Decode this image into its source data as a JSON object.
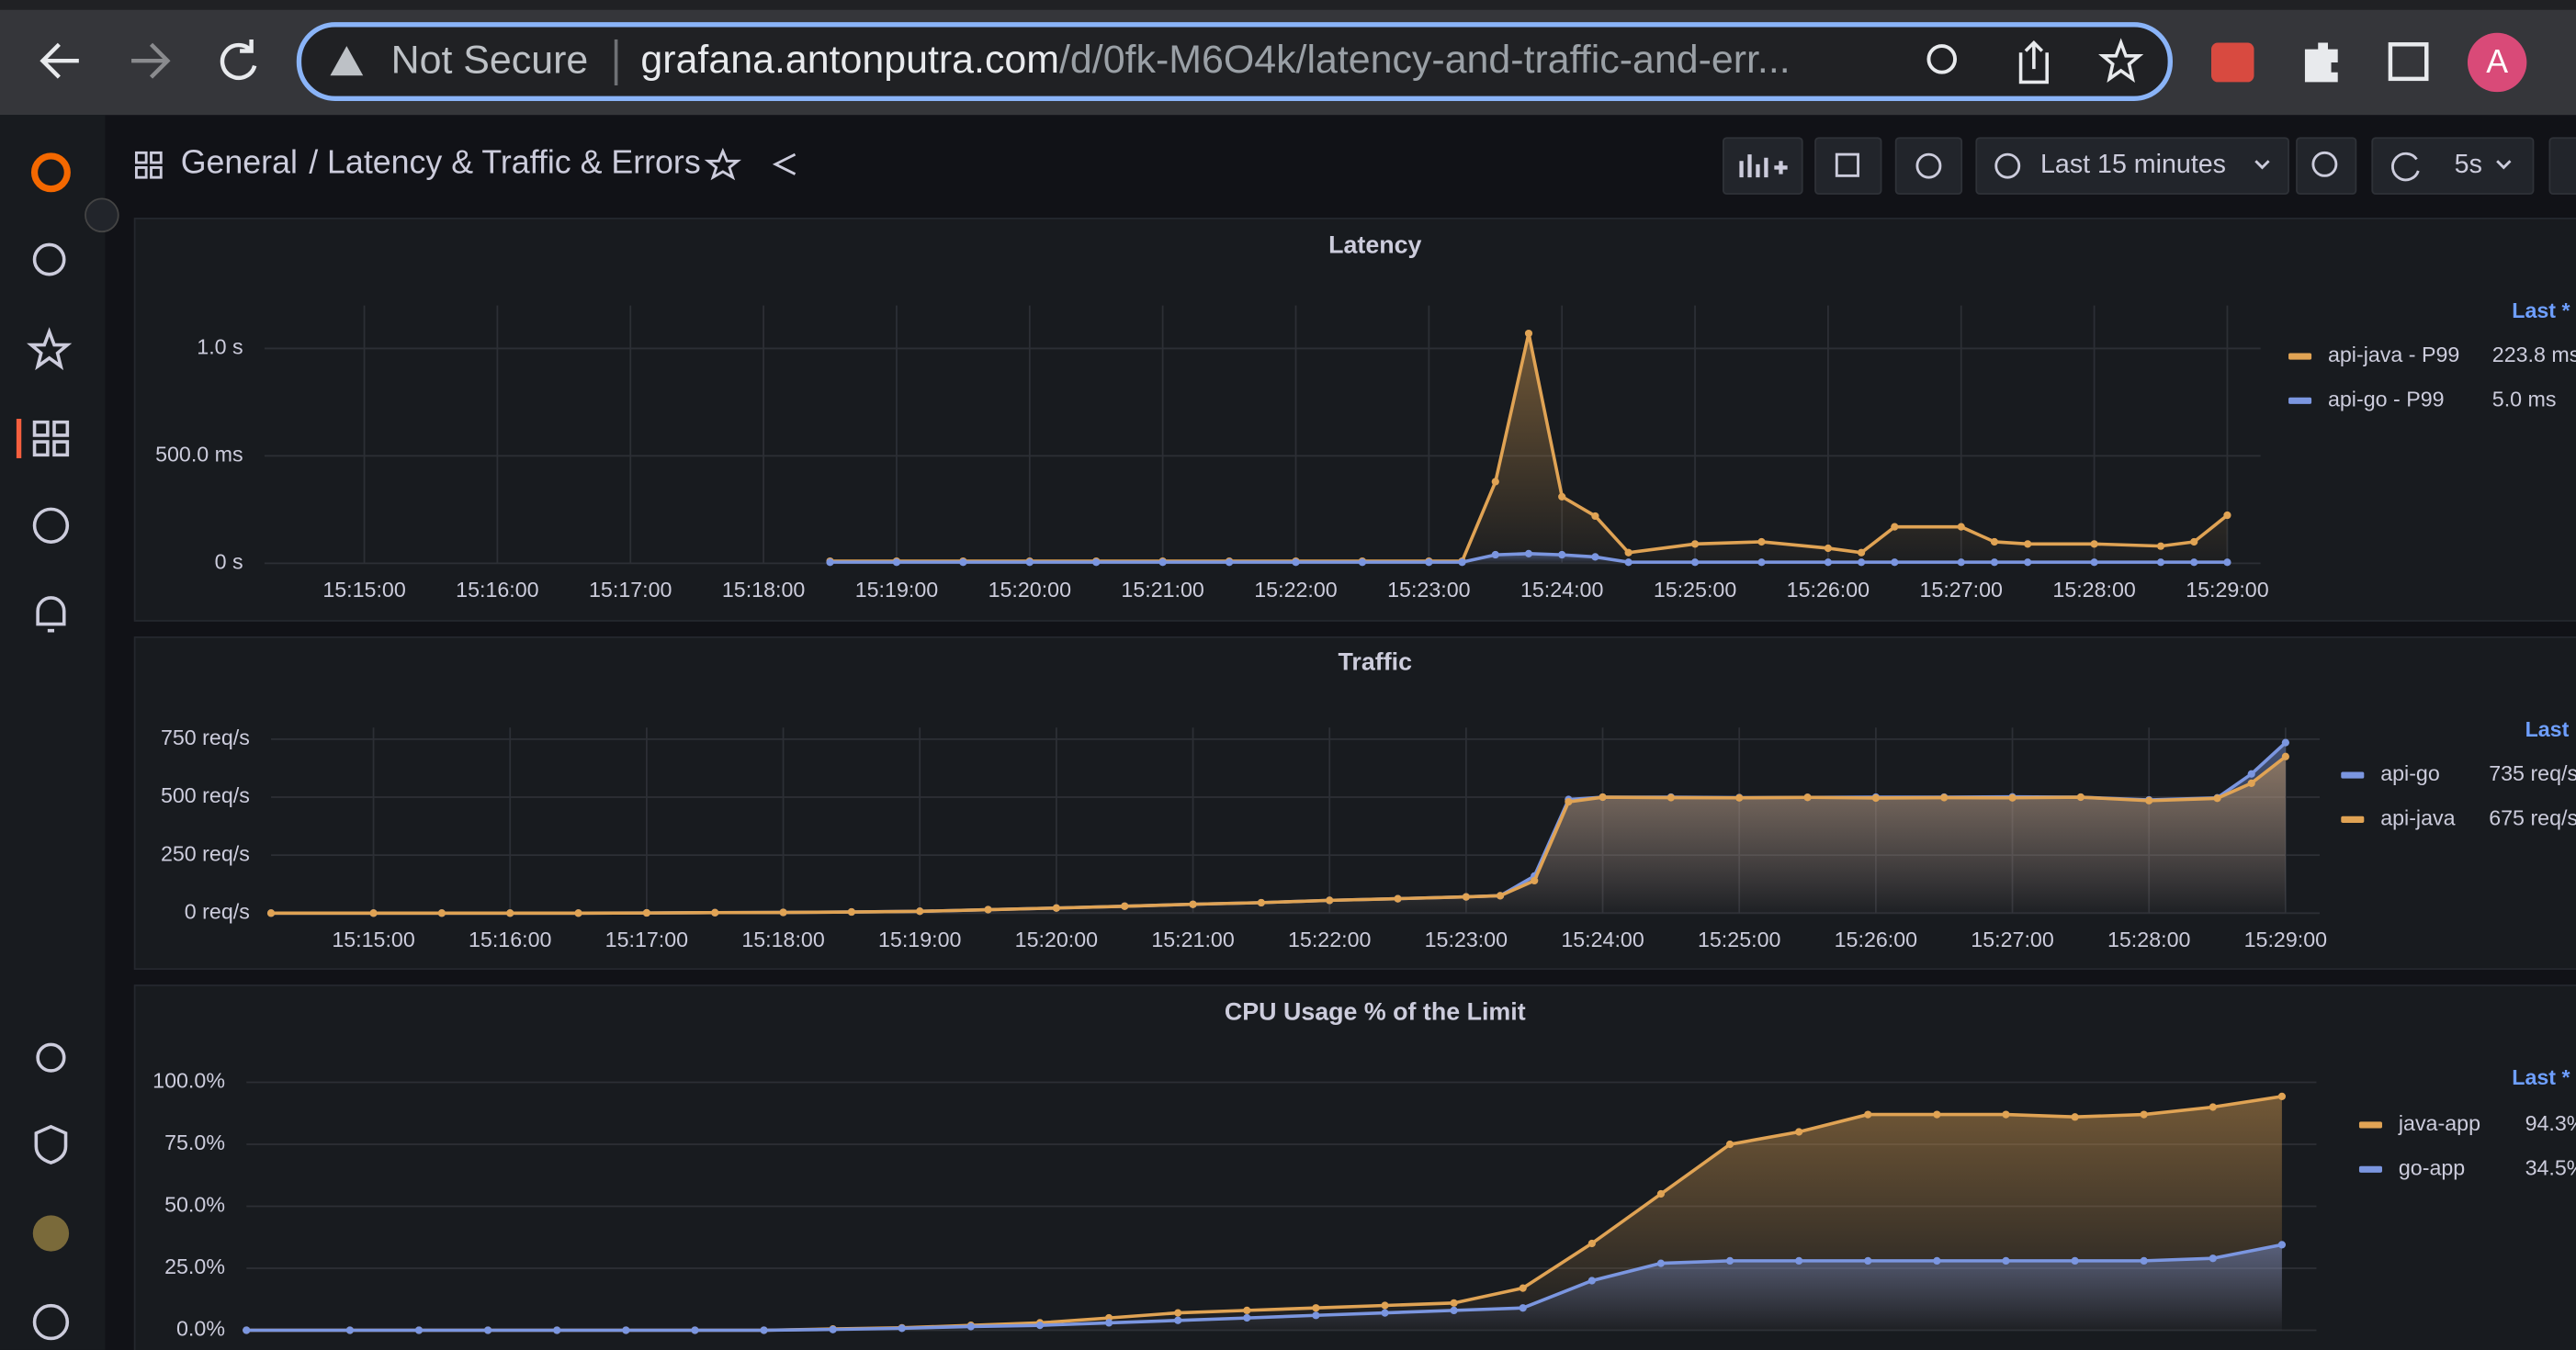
{
  "browser": {
    "not_secure": "Not Secure",
    "url_host": "grafana.antonputra.com",
    "url_path": "/d/0fk-M6O4k/latency-and-traffic-and-err...",
    "avatar": "A"
  },
  "breadcrumb": {
    "folder": "General",
    "title": "/ Latency & Traffic & Errors"
  },
  "toolbar": {
    "time_range": "Last 15 minutes",
    "refresh": "5s"
  },
  "chart_data": [
    {
      "type": "line",
      "title": "Latency",
      "legend_header": "Last *",
      "x": [
        "15:18:30",
        "15:19:00",
        "15:19:30",
        "15:20:00",
        "15:20:30",
        "15:21:00",
        "15:21:30",
        "15:22:00",
        "15:22:30",
        "15:23:00",
        "15:23:15",
        "15:23:30",
        "15:23:45",
        "15:24:00",
        "15:24:15",
        "15:24:30",
        "15:25:00",
        "15:25:30",
        "15:26:00",
        "15:26:15",
        "15:26:30",
        "15:27:00",
        "15:27:15",
        "15:27:30",
        "15:28:00",
        "15:28:30",
        "15:28:45",
        "15:29:00"
      ],
      "series": [
        {
          "name": "api-java - P99",
          "color": "#e0a354",
          "legend_value": "223.8 ms",
          "values": [
            0.01,
            0.01,
            0.01,
            0.01,
            0.01,
            0.01,
            0.01,
            0.01,
            0.01,
            0.01,
            0.01,
            0.38,
            1.07,
            0.31,
            0.22,
            0.05,
            0.09,
            0.1,
            0.07,
            0.05,
            0.17,
            0.17,
            0.1,
            0.09,
            0.09,
            0.08,
            0.1,
            0.2238
          ]
        },
        {
          "name": "api-go - P99",
          "color": "#7b96e0",
          "legend_value": "5.0 ms",
          "values": [
            0.005,
            0.005,
            0.005,
            0.005,
            0.005,
            0.005,
            0.005,
            0.005,
            0.005,
            0.005,
            0.005,
            0.04,
            0.045,
            0.04,
            0.03,
            0.005,
            0.005,
            0.005,
            0.005,
            0.005,
            0.005,
            0.005,
            0.005,
            0.005,
            0.005,
            0.005,
            0.005,
            0.005
          ]
        }
      ],
      "xlim": [
        "15:14:15",
        "15:29:15"
      ],
      "xticks": [
        "15:15:00",
        "15:16:00",
        "15:17:00",
        "15:18:00",
        "15:19:00",
        "15:20:00",
        "15:21:00",
        "15:22:00",
        "15:23:00",
        "15:24:00",
        "15:25:00",
        "15:26:00",
        "15:27:00",
        "15:28:00",
        "15:29:00"
      ],
      "ylim": [
        0,
        1.2
      ],
      "yticks": [
        {
          "value": 0,
          "label": "0 s"
        },
        {
          "value": 0.5,
          "label": "500.0 ms"
        },
        {
          "value": 1,
          "label": "1.0 s"
        }
      ],
      "grid": true
    },
    {
      "type": "line",
      "title": "Traffic",
      "legend_header": "Last",
      "x": [
        "15:14:15",
        "15:15:00",
        "15:15:30",
        "15:16:00",
        "15:16:30",
        "15:17:00",
        "15:17:30",
        "15:18:00",
        "15:18:30",
        "15:19:00",
        "15:19:30",
        "15:20:00",
        "15:20:30",
        "15:21:00",
        "15:21:30",
        "15:22:00",
        "15:22:30",
        "15:23:00",
        "15:23:15",
        "15:23:30",
        "15:23:45",
        "15:24:00",
        "15:24:30",
        "15:25:00",
        "15:25:30",
        "15:26:00",
        "15:26:30",
        "15:27:00",
        "15:27:30",
        "15:28:00",
        "15:28:30",
        "15:28:45",
        "15:29:00"
      ],
      "series": [
        {
          "name": "api-go",
          "color": "#7b96e0",
          "legend_value": "735 req/s",
          "values": [
            0,
            0,
            0,
            0,
            0,
            1,
            2,
            3,
            5,
            8,
            15,
            22,
            30,
            38,
            45,
            55,
            62,
            70,
            75,
            160,
            490,
            500,
            500,
            498,
            499,
            500,
            500,
            501,
            500,
            488,
            497,
            600,
            735
          ]
        },
        {
          "name": "api-java",
          "color": "#e0a354",
          "legend_value": "675 req/s",
          "values": [
            0,
            0,
            0,
            0,
            0,
            1,
            2,
            3,
            5,
            8,
            15,
            22,
            30,
            38,
            45,
            55,
            62,
            70,
            75,
            140,
            480,
            500,
            498,
            497,
            499,
            496,
            498,
            497,
            500,
            485,
            495,
            560,
            675
          ]
        }
      ],
      "xlim": [
        "15:14:15",
        "15:29:15"
      ],
      "xticks": [
        "15:15:00",
        "15:16:00",
        "15:17:00",
        "15:18:00",
        "15:19:00",
        "15:20:00",
        "15:21:00",
        "15:22:00",
        "15:23:00",
        "15:24:00",
        "15:25:00",
        "15:26:00",
        "15:27:00",
        "15:28:00",
        "15:29:00"
      ],
      "ylim": [
        0,
        800
      ],
      "yticks": [
        {
          "value": 0,
          "label": "0 req/s"
        },
        {
          "value": 250,
          "label": "250 req/s"
        },
        {
          "value": 500,
          "label": "500 req/s"
        },
        {
          "value": 750,
          "label": "750 req/s"
        }
      ],
      "grid": true
    },
    {
      "type": "line",
      "title": "CPU Usage % of the Limit",
      "legend_header": "Last *",
      "x": [
        "15:14:15",
        "15:15:00",
        "15:15:30",
        "15:16:00",
        "15:16:30",
        "15:17:00",
        "15:17:30",
        "15:18:00",
        "15:18:30",
        "15:19:00",
        "15:19:30",
        "15:20:00",
        "15:20:30",
        "15:21:00",
        "15:21:30",
        "15:22:00",
        "15:22:30",
        "15:23:00",
        "15:23:30",
        "15:24:00",
        "15:24:30",
        "15:25:00",
        "15:25:30",
        "15:26:00",
        "15:26:30",
        "15:27:00",
        "15:27:30",
        "15:28:00",
        "15:28:30",
        "15:29:00"
      ],
      "series": [
        {
          "name": "java-app",
          "color": "#e0a354",
          "legend_value": "94.3%",
          "values": [
            0,
            0,
            0,
            0,
            0,
            0,
            0,
            0,
            0.5,
            1,
            2,
            3,
            5,
            7,
            8,
            9,
            10,
            11,
            17,
            35,
            55,
            75,
            80,
            87,
            87,
            87,
            86,
            87,
            90,
            94.3
          ]
        },
        {
          "name": "go-app",
          "color": "#7b96e0",
          "legend_value": "34.5%",
          "values": [
            0,
            0,
            0,
            0,
            0,
            0,
            0,
            0,
            0.3,
            0.8,
            1.5,
            2,
            3,
            4,
            5,
            6,
            7,
            8,
            9,
            20,
            27,
            28,
            28,
            28,
            28,
            28,
            28,
            28,
            29,
            34.5
          ]
        }
      ],
      "xlim": [
        "15:14:15",
        "15:29:15"
      ],
      "ylim": [
        0,
        100
      ],
      "yticks": [
        {
          "value": 0,
          "label": "0.0%"
        },
        {
          "value": 25,
          "label": "25.0%"
        },
        {
          "value": 50,
          "label": "50.0%"
        },
        {
          "value": 75,
          "label": "75.0%"
        },
        {
          "value": 100,
          "label": "100.0%"
        }
      ],
      "grid": true
    }
  ]
}
